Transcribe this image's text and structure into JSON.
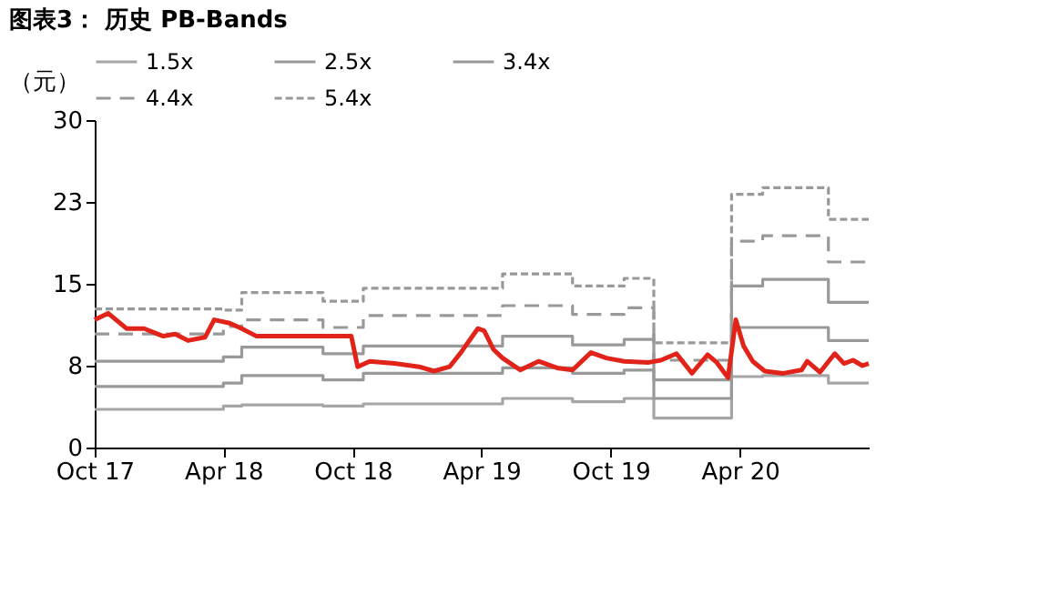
{
  "chart_data": {
    "type": "line",
    "title": "图表3：  历史 PB-Bands",
    "ylabel": "（元）",
    "x": [
      "2017-10-01",
      "2018-04-01",
      "2018-04-27",
      "2018-08-20",
      "2018-10-16",
      "2019-05-01",
      "2019-08-08",
      "2019-10-20",
      "2019-12-01",
      "2020-03-20",
      "2020-05-03",
      "2020-08-04",
      "2020-09-30"
    ],
    "series": [
      {
        "color": "#e2231a",
        "line_style": "solid",
        "x": [
          "2017-10-01",
          "2017-10-20",
          "2017-11-15",
          "2017-12-10",
          "2018-01-06",
          "2018-01-23",
          "2018-02-10",
          "2018-03-06",
          "2018-03-19",
          "2018-04-10",
          "2018-04-27",
          "2018-05-18",
          "2018-09-29",
          "2018-10-08",
          "2018-10-25",
          "2018-11-29",
          "2019-01-03",
          "2019-01-24",
          "2019-02-15",
          "2019-03-03",
          "2019-03-27",
          "2019-04-05",
          "2019-04-18",
          "2019-05-01",
          "2019-05-26",
          "2019-06-21",
          "2019-07-17",
          "2019-08-08",
          "2019-09-03",
          "2019-09-25",
          "2019-10-20",
          "2019-11-24",
          "2019-12-11",
          "2020-01-02",
          "2020-01-24",
          "2020-02-15",
          "2020-02-28",
          "2020-03-15",
          "2020-03-26",
          "2020-04-06",
          "2020-04-19",
          "2020-05-06",
          "2020-06-01",
          "2020-06-27",
          "2020-07-05",
          "2020-07-23",
          "2020-08-13",
          "2020-08-26",
          "2020-09-08",
          "2020-09-21",
          "2020-09-30"
        ],
        "values": [
          11.7,
          12.3,
          10.9,
          10.9,
          10.2,
          10.4,
          9.8,
          10.1,
          11.7,
          11.4,
          10.9,
          10.2,
          10.2,
          7.4,
          7.9,
          7.7,
          7.4,
          7.0,
          7.4,
          8.7,
          10.9,
          10.7,
          9.0,
          8.2,
          7.1,
          7.9,
          7.3,
          7.1,
          8.7,
          8.2,
          7.9,
          7.8,
          8.0,
          8.6,
          6.8,
          8.5,
          7.8,
          6.4,
          11.7,
          9.3,
          7.9,
          7.0,
          6.8,
          7.1,
          7.9,
          6.9,
          8.6,
          7.7,
          8.0,
          7.5,
          7.7
        ]
      },
      {
        "name": "1.5x",
        "type": "step",
        "color": "#a6a6a6",
        "line_style": "solid",
        "values": [
          3.5,
          3.8,
          3.9,
          3.8,
          4.0,
          4.5,
          4.2,
          4.5,
          2.7,
          6.5,
          6.6,
          5.9,
          5.9
        ]
      },
      {
        "name": "2.5x",
        "type": "step",
        "color": "#999999",
        "line_style": "solid",
        "values": [
          5.6,
          5.9,
          6.6,
          6.2,
          6.8,
          7.3,
          6.8,
          7.1,
          4.5,
          11.0,
          11.0,
          9.8,
          9.8
        ]
      },
      {
        "name": "3.4x",
        "type": "step",
        "color": "#999999",
        "line_style": "solid",
        "values": [
          7.9,
          8.3,
          9.2,
          8.6,
          9.3,
          10.2,
          9.4,
          9.9,
          6.2,
          14.8,
          15.4,
          13.3,
          13.3
        ]
      },
      {
        "name": "4.4x",
        "type": "step",
        "color": "#999999",
        "line_style": "dashed",
        "values": [
          10.4,
          11.1,
          11.7,
          11.0,
          12.1,
          13.0,
          12.2,
          12.8,
          8.0,
          18.9,
          19.4,
          17.0,
          17.0
        ]
      },
      {
        "name": "5.4x",
        "type": "step",
        "color": "#999999",
        "line_style": "dotted",
        "values": [
          12.7,
          12.6,
          14.2,
          13.4,
          14.6,
          15.9,
          14.8,
          15.5,
          9.6,
          23.2,
          23.8,
          20.9,
          20.9
        ]
      }
    ],
    "xlim": [
      "2017-10-01",
      "2020-09-30"
    ],
    "xticks": [
      {
        "value": "2017-10-01",
        "label": "Oct 17"
      },
      {
        "value": "2018-04-01",
        "label": "Apr 18"
      },
      {
        "value": "2018-10-01",
        "label": "Oct 18"
      },
      {
        "value": "2019-04-01",
        "label": "Apr 19"
      },
      {
        "value": "2019-10-01",
        "label": "Oct 19"
      },
      {
        "value": "2020-04-01",
        "label": "Apr 20"
      }
    ],
    "ylim": [
      0,
      30
    ],
    "yticks": [
      0,
      {
        "value": 7.5,
        "label": "8"
      },
      15,
      {
        "value": 22.5,
        "label": "23"
      },
      30
    ],
    "legend": "top",
    "grid": false
  }
}
